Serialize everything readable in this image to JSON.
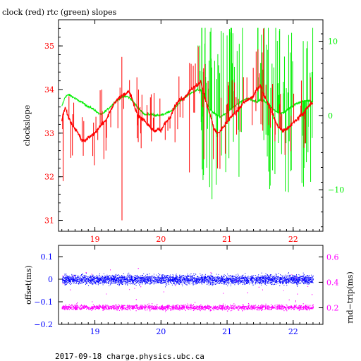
{
  "title": "clock (red) rtc (green) slopes",
  "footer": "2017-09-18  charge.physics.ubc.ca",
  "colors": {
    "clock": "#ff0000",
    "rtc": "#00ee00",
    "offset": "#0000ff",
    "rndtrip": "#ff00ff",
    "frame": "#000000"
  },
  "chart_data": [
    {
      "type": "line",
      "title": "clock (red) rtc (green) slopes",
      "ylabel": "clockslope",
      "y2label": "",
      "xlim": [
        18.45,
        22.45
      ],
      "ylim": [
        30.75,
        35.6
      ],
      "y2lim": [
        -15.6,
        12.9
      ],
      "xticks": [
        "19",
        "20",
        "21",
        "22"
      ],
      "yticks": [
        "31",
        "32",
        "33",
        "34",
        "35"
      ],
      "y2ticks": [
        "10",
        "0",
        "−10"
      ],
      "grid": false,
      "series": [
        {
          "color": "red",
          "axis": "left",
          "x": [
            18.5,
            18.55,
            18.6,
            18.65,
            18.7,
            18.75,
            18.8,
            18.85,
            18.9,
            18.95,
            19.0,
            19.05,
            19.1,
            19.15,
            19.2,
            19.25,
            19.3,
            19.35,
            19.4,
            19.45,
            19.5,
            19.55,
            19.6,
            19.65,
            19.7,
            19.75,
            19.8,
            19.85,
            19.9,
            19.95,
            20.0,
            20.05,
            20.1,
            20.15,
            20.2,
            20.25,
            20.3,
            20.35,
            20.4,
            20.45,
            20.5,
            20.55,
            20.6,
            20.65,
            20.7,
            20.75,
            20.8,
            20.85,
            20.9,
            20.95,
            21.0,
            21.05,
            21.1,
            21.15,
            21.2,
            21.25,
            21.3,
            21.35,
            21.4,
            21.45,
            21.5,
            21.55,
            21.6,
            21.65,
            21.7,
            21.75,
            21.8,
            21.85,
            21.9,
            21.95,
            22.0,
            22.05,
            22.1,
            22.15,
            22.2,
            22.25,
            22.3
          ],
          "y": [
            33.3,
            33.6,
            33.35,
            33.2,
            33.1,
            33.0,
            32.85,
            32.8,
            32.9,
            32.95,
            33.0,
            33.1,
            33.2,
            33.25,
            33.4,
            33.55,
            33.7,
            33.8,
            33.85,
            33.9,
            33.95,
            33.85,
            33.6,
            33.4,
            33.35,
            33.3,
            33.2,
            33.1,
            33.05,
            33.1,
            33.05,
            33.2,
            33.3,
            33.4,
            33.6,
            33.7,
            33.8,
            33.8,
            33.9,
            34.0,
            34.05,
            34.1,
            34.2,
            33.9,
            33.6,
            33.4,
            33.1,
            33.0,
            33.05,
            33.15,
            33.25,
            33.35,
            33.45,
            33.5,
            33.6,
            33.7,
            33.75,
            33.8,
            33.85,
            34.0,
            34.1,
            33.9,
            33.75,
            33.6,
            33.4,
            33.2,
            33.1,
            33.05,
            33.1,
            33.15,
            33.25,
            33.3,
            33.4,
            33.45,
            33.55,
            33.65,
            33.7
          ]
        },
        {
          "color": "green",
          "axis": "right",
          "x": [
            18.5,
            18.55,
            18.6,
            18.65,
            18.7,
            18.75,
            18.8,
            18.85,
            18.9,
            18.95,
            19.0,
            19.05,
            19.1,
            19.15,
            19.2,
            19.25,
            19.3,
            19.35,
            19.4,
            19.45,
            19.5,
            19.55,
            19.6,
            19.65,
            19.7,
            19.75,
            19.8,
            19.85,
            19.9,
            19.95,
            20.0,
            20.05,
            20.1,
            20.15,
            20.2,
            20.25,
            20.3,
            20.35,
            20.4,
            20.45,
            20.5,
            20.55,
            20.6,
            20.65,
            20.7,
            20.75,
            20.8,
            20.85,
            20.9,
            20.95,
            21.0,
            21.05,
            21.1,
            21.15,
            21.2,
            21.25,
            21.3,
            21.35,
            21.4,
            21.45,
            21.5,
            21.55,
            21.6,
            21.65,
            21.7,
            21.75,
            21.8,
            21.85,
            21.9,
            21.95,
            22.0,
            22.05,
            22.1,
            22.15,
            22.2,
            22.25,
            22.3
          ],
          "y": [
            1.2,
            2.5,
            2.8,
            2.6,
            2.3,
            2.0,
            1.8,
            1.5,
            1.2,
            1.0,
            0.7,
            0.3,
            0.1,
            0.5,
            0.9,
            1.3,
            1.8,
            2.1,
            2.4,
            2.6,
            2.5,
            2.2,
            1.6,
            1.1,
            0.6,
            0.2,
            0.1,
            0.2,
            0.0,
            0.0,
            0.1,
            0.2,
            0.4,
            0.6,
            0.9,
            1.4,
            2.0,
            2.3,
            2.7,
            3.0,
            3.2,
            3.5,
            3.4,
            2.6,
            1.5,
            0.8,
            0.3,
            0.0,
            -0.2,
            0.1,
            0.4,
            0.8,
            1.2,
            1.5,
            1.8,
            2.1,
            2.3,
            2.2,
            2.0,
            1.8,
            2.1,
            2.0,
            1.7,
            1.3,
            0.8,
            0.5,
            0.3,
            0.4,
            0.7,
            1.0,
            1.3,
            1.6,
            1.8,
            1.9,
            2.0,
            2.0,
            1.8
          ]
        }
      ]
    },
    {
      "type": "scatter",
      "ylabel": "offset(ms)",
      "y2label": "rnd−trip(ms)",
      "xlim": [
        18.45,
        22.45
      ],
      "ylim": [
        -0.2,
        0.15
      ],
      "y2lim": [
        0.07,
        0.69
      ],
      "xticks": [
        "19",
        "20",
        "21",
        "22"
      ],
      "yticks": [
        "0.1",
        "0",
        "−0.1",
        "−0.2"
      ],
      "y2ticks": [
        "0.6",
        "0.4",
        "0.2"
      ],
      "grid": false,
      "series": [
        {
          "color": "blue",
          "axis": "left",
          "x": [
            18.5,
            22.3
          ],
          "y": [
            0.0,
            0.0
          ]
        },
        {
          "color": "magenta",
          "axis": "right",
          "x": [
            18.5,
            22.3
          ],
          "y": [
            0.21,
            0.21
          ]
        }
      ]
    }
  ]
}
